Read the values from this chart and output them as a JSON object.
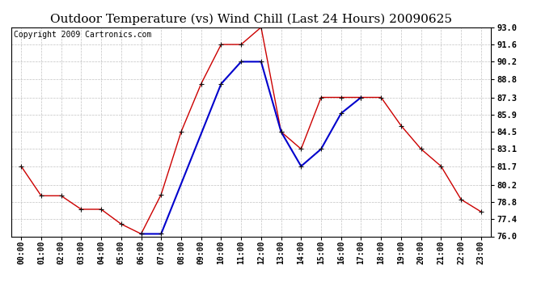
{
  "title": "Outdoor Temperature (vs) Wind Chill (Last 24 Hours) 20090625",
  "copyright_text": "Copyright 2009 Cartronics.com",
  "x_labels": [
    "00:00",
    "01:00",
    "02:00",
    "03:00",
    "04:00",
    "05:00",
    "06:00",
    "07:00",
    "08:00",
    "09:00",
    "10:00",
    "11:00",
    "12:00",
    "13:00",
    "14:00",
    "15:00",
    "16:00",
    "17:00",
    "18:00",
    "19:00",
    "20:00",
    "21:00",
    "22:00",
    "23:00"
  ],
  "red_values": [
    81.7,
    79.3,
    79.3,
    78.2,
    78.2,
    77.0,
    76.2,
    79.4,
    84.5,
    88.4,
    91.6,
    91.6,
    93.0,
    84.5,
    83.1,
    87.3,
    87.3,
    87.3,
    87.3,
    85.0,
    83.1,
    81.7,
    79.0,
    78.0
  ],
  "blue_x": [
    6,
    7,
    10,
    11,
    12,
    13,
    14,
    15,
    16,
    17
  ],
  "blue_values": [
    76.2,
    76.2,
    88.4,
    90.2,
    90.2,
    84.5,
    81.7,
    83.1,
    86.0,
    87.3
  ],
  "ylim": [
    76.0,
    93.0
  ],
  "yticks": [
    76.0,
    77.4,
    78.8,
    80.2,
    81.7,
    83.1,
    84.5,
    85.9,
    87.3,
    88.8,
    90.2,
    91.6,
    93.0
  ],
  "red_color": "#cc0000",
  "blue_color": "#0000cc",
  "bg_color": "#ffffff",
  "grid_color": "#bbbbbb",
  "title_fontsize": 11,
  "copyright_fontsize": 7
}
